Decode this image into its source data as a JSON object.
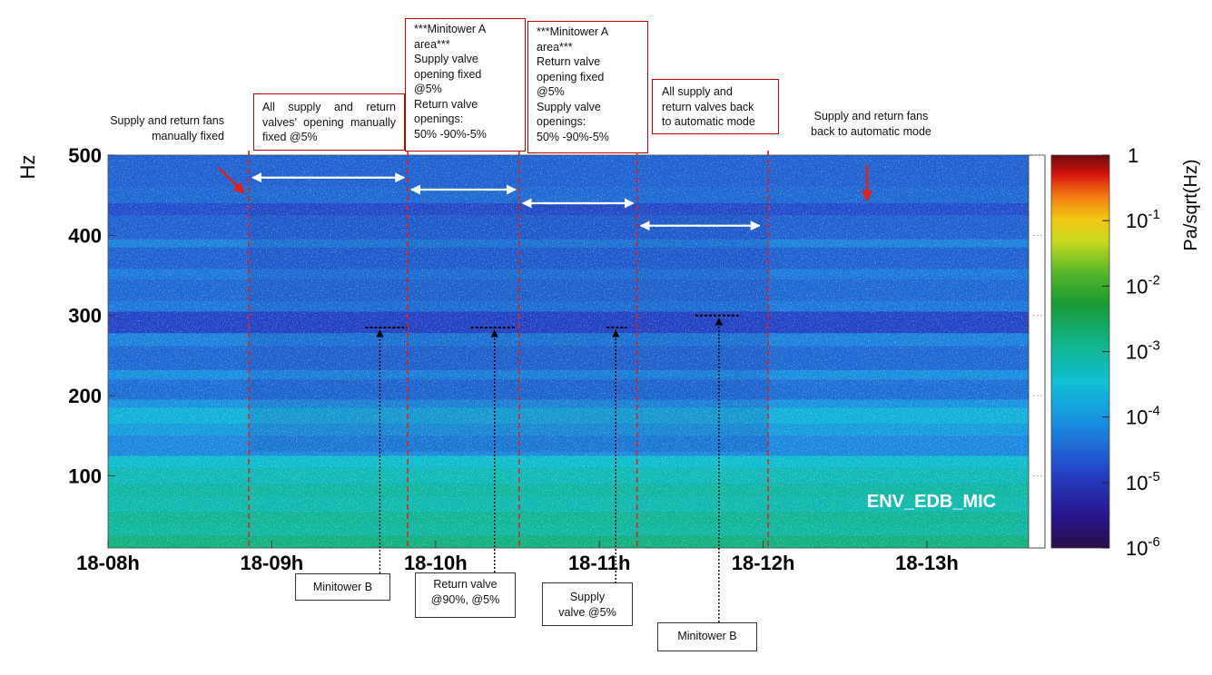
{
  "chart_data": {
    "type": "heatmap",
    "channel": "ENV_EDB_MIC",
    "xlabel": "",
    "ylabel": "Hz",
    "x_ticks": [
      "18-08h",
      "18-09h",
      "18-10h",
      "18-11h",
      "18-12h",
      "18-13h"
    ],
    "y_ticks": [
      100,
      200,
      300,
      400,
      500
    ],
    "ylim": [
      10,
      500
    ],
    "xlim_hours": [
      8.0,
      13.55
    ],
    "colorbar": {
      "label": "Pa/sqrt(Hz)",
      "tick_labels": [
        "1",
        "10-1",
        "10-2",
        "10-3",
        "10-4",
        "10-5",
        "10-6"
      ],
      "tick_values": [
        1,
        0.1,
        0.01,
        0.001,
        0.0001,
        1e-05,
        1e-06
      ],
      "range": [
        1e-06,
        1
      ],
      "scale": "log"
    },
    "markers_hours": [
      8.86,
      9.83,
      10.51,
      11.23,
      12.03
    ],
    "interval_arrows": [
      {
        "start": 8.86,
        "end": 9.83,
        "freq": 472
      },
      {
        "start": 9.83,
        "end": 10.51,
        "freq": 457
      },
      {
        "start": 10.51,
        "end": 11.23,
        "freq": 440
      },
      {
        "start": 11.23,
        "end": 12.0,
        "freq": 412
      }
    ],
    "annotations": [
      {
        "text": "Supply and return fans\nmanually fixed"
      },
      {
        "text": "All supply and return valves’ opening manually fixed @5%"
      },
      {
        "text": "***Minitower A\narea***\nSupply valve\nopening fixed\n@5%\nReturn valve\nopenings:\n50% -90%-5%"
      },
      {
        "text": "***Minitower A\narea***\nReturn valve\nopening fixed\n@5%\nSupply valve\nopenings:\n50% -90%-5%"
      },
      {
        "text": "All supply and\nreturn valves back\nto automatic mode"
      },
      {
        "text": "Supply and return fans\nback to automatic mode"
      },
      {
        "text": "Minitower B",
        "hour": 9.66,
        "freq": 285
      },
      {
        "text": "Return valve\n@90%, @5%",
        "hour": 10.36,
        "freq": 285
      },
      {
        "text": "Supply\nvalve @5%",
        "hour": 11.1,
        "freq": 285
      },
      {
        "text": "Minitower B",
        "hour": 11.73,
        "freq": 300
      }
    ],
    "dominant_levels": [
      {
        "band_hz": [
          10,
          120
        ],
        "approx_level": 0.001
      },
      {
        "band_hz": [
          120,
          500
        ],
        "approx_level": 3e-05
      }
    ]
  },
  "colors": {
    "marker": "#e0201b",
    "arrow_white": "#ffffff",
    "arrow_red": "#e0201b",
    "box_border": "#c00000",
    "channel_text": "#ffffff"
  }
}
